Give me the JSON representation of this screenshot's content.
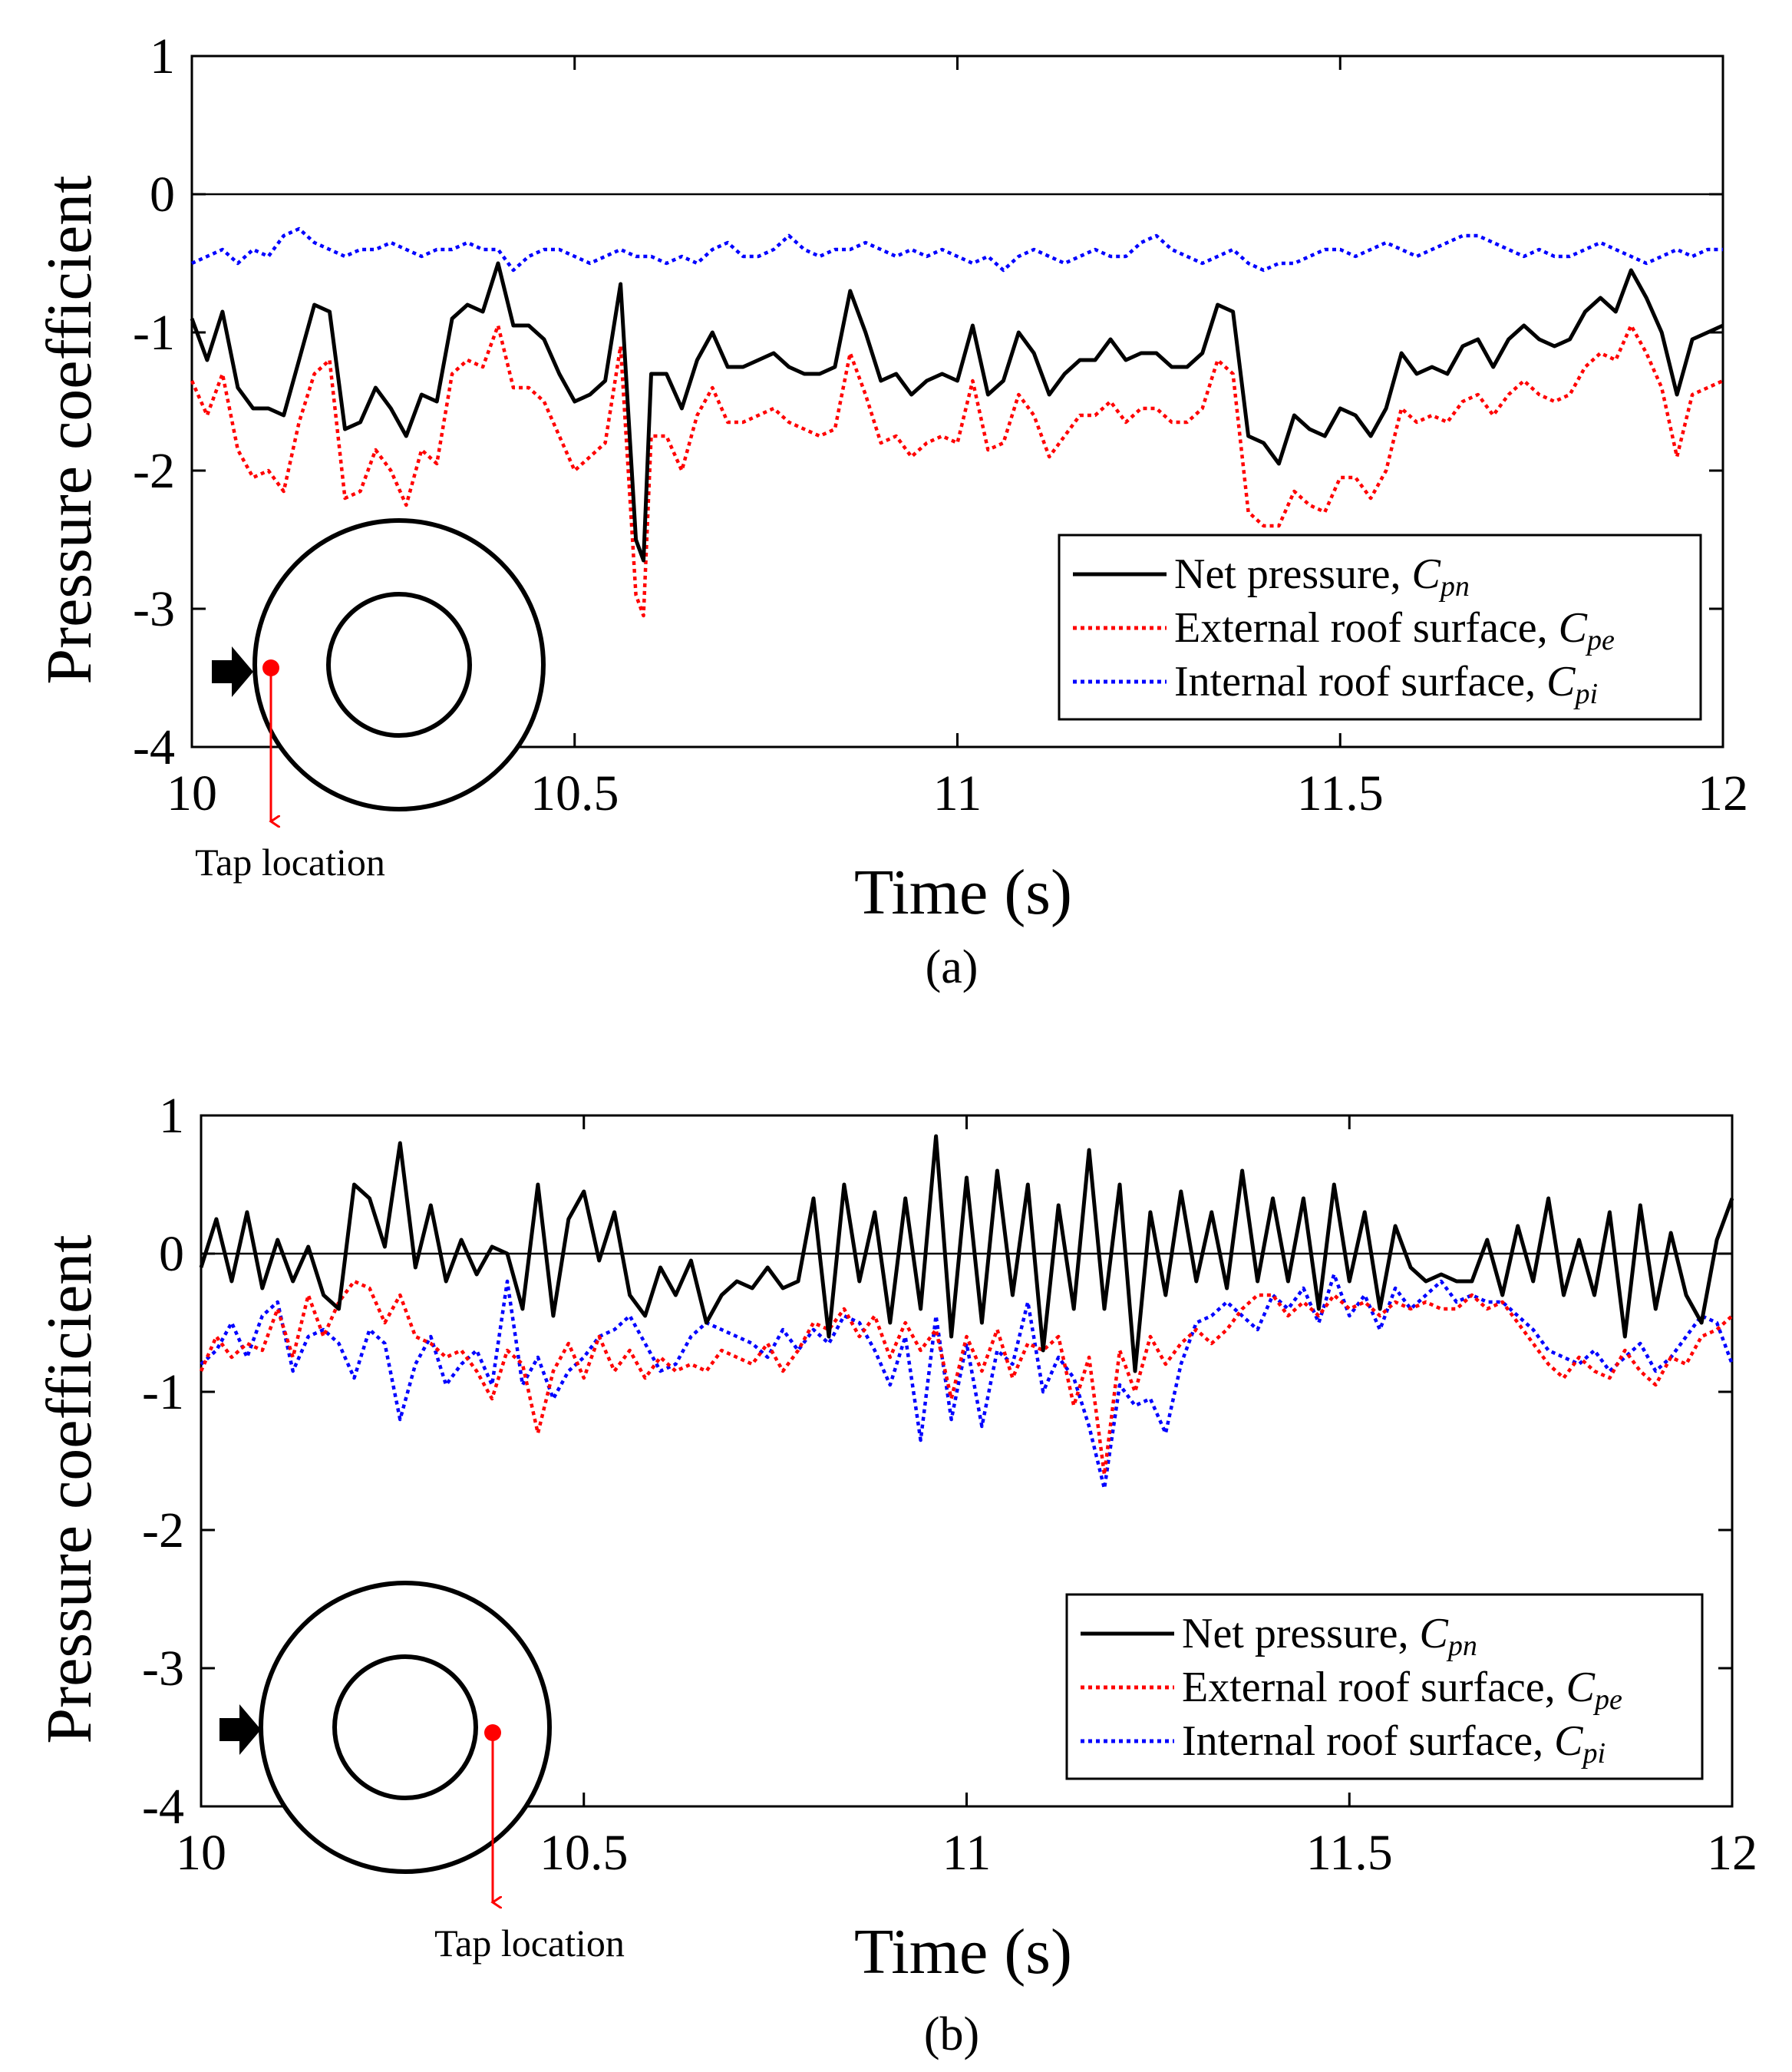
{
  "figure": {
    "panels": [
      {
        "caption": "(a)",
        "tap_label": "Tap location",
        "tap_position": "outer edge (windward)",
        "legend": [
          {
            "prefix": "Net pressure, ",
            "symbol": "C",
            "sub": "pn",
            "color": "#000000",
            "style": "solid"
          },
          {
            "prefix": "External roof surface, ",
            "symbol": "C",
            "sub": "pe",
            "color": "#ff0000",
            "style": "dotted"
          },
          {
            "prefix": "Internal roof surface, ",
            "symbol": "C",
            "sub": "pi",
            "color": "#0000ff",
            "style": "dotted"
          }
        ]
      },
      {
        "caption": "(b)",
        "tap_label": "Tap location",
        "tap_position": "inner ring edge (leeward)",
        "legend": [
          {
            "prefix": "Net pressure, ",
            "symbol": "C",
            "sub": "pn",
            "color": "#000000",
            "style": "solid"
          },
          {
            "prefix": "External roof surface, ",
            "symbol": "C",
            "sub": "pe",
            "color": "#ff0000",
            "style": "dotted"
          },
          {
            "prefix": "Internal roof surface, ",
            "symbol": "C",
            "sub": "pi",
            "color": "#0000ff",
            "style": "dotted"
          }
        ]
      }
    ]
  },
  "chart_data": [
    {
      "type": "line",
      "title": "",
      "xlabel": "Time (s)",
      "ylabel": "Pressure coefficient",
      "xlim": [
        10,
        12
      ],
      "ylim": [
        -4,
        1
      ],
      "xticks": [
        10,
        10.5,
        11,
        11.5,
        12
      ],
      "xtick_labels": [
        "10",
        "10.5",
        "11",
        "11.5",
        "12"
      ],
      "yticks": [
        1,
        0,
        -1,
        -2,
        -3,
        -4
      ],
      "ytick_labels": [
        "1",
        "0",
        "-1",
        "-2",
        "-3",
        "-4"
      ],
      "reference_line": 0,
      "legend_position": "lower-right",
      "x": [
        10.0,
        10.02,
        10.04,
        10.06,
        10.08,
        10.1,
        10.12,
        10.14,
        10.16,
        10.18,
        10.2,
        10.22,
        10.24,
        10.26,
        10.28,
        10.3,
        10.32,
        10.34,
        10.36,
        10.38,
        10.4,
        10.42,
        10.44,
        10.46,
        10.48,
        10.5,
        10.52,
        10.54,
        10.56,
        10.58,
        10.59,
        10.6,
        10.62,
        10.64,
        10.66,
        10.68,
        10.7,
        10.72,
        10.74,
        10.76,
        10.78,
        10.8,
        10.82,
        10.84,
        10.86,
        10.88,
        10.9,
        10.92,
        10.94,
        10.96,
        10.98,
        11.0,
        11.02,
        11.04,
        11.06,
        11.08,
        11.1,
        11.12,
        11.14,
        11.16,
        11.18,
        11.2,
        11.22,
        11.24,
        11.26,
        11.28,
        11.3,
        11.32,
        11.34,
        11.36,
        11.38,
        11.4,
        11.42,
        11.44,
        11.46,
        11.48,
        11.5,
        11.52,
        11.54,
        11.56,
        11.58,
        11.6,
        11.62,
        11.64,
        11.66,
        11.68,
        11.7,
        11.72,
        11.74,
        11.76,
        11.78,
        11.8,
        11.82,
        11.84,
        11.86,
        11.88,
        11.9,
        11.92,
        11.94,
        11.96,
        11.98,
        12.0
      ],
      "series": [
        {
          "name": "Net pressure, Cpn",
          "color": "#000000",
          "style": "solid",
          "values": [
            -0.9,
            -1.2,
            -0.85,
            -1.4,
            -1.55,
            -1.55,
            -1.6,
            -1.2,
            -0.8,
            -0.85,
            -1.7,
            -1.65,
            -1.4,
            -1.55,
            -1.75,
            -1.45,
            -1.5,
            -0.9,
            -0.8,
            -0.85,
            -0.5,
            -0.95,
            -0.95,
            -1.05,
            -1.3,
            -1.5,
            -1.45,
            -1.35,
            -0.65,
            -2.5,
            -2.65,
            -1.3,
            -1.3,
            -1.55,
            -1.2,
            -1.0,
            -1.25,
            -1.25,
            -1.2,
            -1.15,
            -1.25,
            -1.3,
            -1.3,
            -1.25,
            -0.7,
            -1.0,
            -1.35,
            -1.3,
            -1.45,
            -1.35,
            -1.3,
            -1.35,
            -0.95,
            -1.45,
            -1.35,
            -1.0,
            -1.15,
            -1.45,
            -1.3,
            -1.2,
            -1.2,
            -1.05,
            -1.2,
            -1.15,
            -1.15,
            -1.25,
            -1.25,
            -1.15,
            -0.8,
            -0.85,
            -1.75,
            -1.8,
            -1.95,
            -1.6,
            -1.7,
            -1.75,
            -1.55,
            -1.6,
            -1.75,
            -1.55,
            -1.15,
            -1.3,
            -1.25,
            -1.3,
            -1.1,
            -1.05,
            -1.25,
            -1.05,
            -0.95,
            -1.05,
            -1.1,
            -1.05,
            -0.85,
            -0.75,
            -0.85,
            -0.55,
            -0.75,
            -1.0,
            -1.45,
            -1.05,
            -1.0,
            -0.95
          ]
        },
        {
          "name": "External roof surface, Cpe",
          "color": "#ff0000",
          "style": "dotted",
          "values": [
            -1.35,
            -1.6,
            -1.3,
            -1.85,
            -2.05,
            -2.0,
            -2.15,
            -1.65,
            -1.3,
            -1.2,
            -2.2,
            -2.15,
            -1.85,
            -2.0,
            -2.25,
            -1.85,
            -1.95,
            -1.3,
            -1.2,
            -1.25,
            -0.95,
            -1.4,
            -1.4,
            -1.5,
            -1.75,
            -2.0,
            -1.9,
            -1.8,
            -1.1,
            -2.9,
            -3.05,
            -1.75,
            -1.75,
            -2.0,
            -1.6,
            -1.4,
            -1.65,
            -1.65,
            -1.6,
            -1.55,
            -1.65,
            -1.7,
            -1.75,
            -1.7,
            -1.15,
            -1.45,
            -1.8,
            -1.75,
            -1.9,
            -1.8,
            -1.75,
            -1.8,
            -1.35,
            -1.85,
            -1.8,
            -1.45,
            -1.6,
            -1.9,
            -1.75,
            -1.6,
            -1.6,
            -1.5,
            -1.65,
            -1.55,
            -1.55,
            -1.65,
            -1.65,
            -1.55,
            -1.2,
            -1.3,
            -2.3,
            -2.4,
            -2.4,
            -2.15,
            -2.25,
            -2.3,
            -2.05,
            -2.05,
            -2.2,
            -2.0,
            -1.55,
            -1.65,
            -1.6,
            -1.65,
            -1.5,
            -1.45,
            -1.6,
            -1.45,
            -1.35,
            -1.45,
            -1.5,
            -1.45,
            -1.25,
            -1.15,
            -1.2,
            -0.95,
            -1.15,
            -1.4,
            -1.9,
            -1.45,
            -1.4,
            -1.35
          ]
        },
        {
          "name": "Internal roof surface, Cpi",
          "color": "#0000ff",
          "style": "dotted",
          "values": [
            -0.5,
            -0.45,
            -0.4,
            -0.5,
            -0.4,
            -0.45,
            -0.3,
            -0.25,
            -0.35,
            -0.4,
            -0.45,
            -0.4,
            -0.4,
            -0.35,
            -0.4,
            -0.45,
            -0.4,
            -0.4,
            -0.35,
            -0.4,
            -0.4,
            -0.55,
            -0.45,
            -0.4,
            -0.4,
            -0.45,
            -0.5,
            -0.45,
            -0.4,
            -0.45,
            -0.45,
            -0.45,
            -0.5,
            -0.45,
            -0.5,
            -0.4,
            -0.35,
            -0.45,
            -0.45,
            -0.4,
            -0.3,
            -0.4,
            -0.45,
            -0.4,
            -0.4,
            -0.35,
            -0.4,
            -0.45,
            -0.4,
            -0.45,
            -0.4,
            -0.45,
            -0.5,
            -0.45,
            -0.55,
            -0.45,
            -0.4,
            -0.45,
            -0.5,
            -0.45,
            -0.4,
            -0.45,
            -0.45,
            -0.35,
            -0.3,
            -0.4,
            -0.45,
            -0.5,
            -0.45,
            -0.4,
            -0.5,
            -0.55,
            -0.5,
            -0.5,
            -0.45,
            -0.4,
            -0.4,
            -0.45,
            -0.4,
            -0.35,
            -0.4,
            -0.45,
            -0.4,
            -0.35,
            -0.3,
            -0.3,
            -0.35,
            -0.4,
            -0.45,
            -0.4,
            -0.45,
            -0.45,
            -0.4,
            -0.35,
            -0.4,
            -0.45,
            -0.5,
            -0.45,
            -0.4,
            -0.45,
            -0.4,
            -0.4
          ]
        }
      ]
    },
    {
      "type": "line",
      "title": "",
      "xlabel": "Time (s)",
      "ylabel": "Pressure coefficient",
      "xlim": [
        10,
        12
      ],
      "ylim": [
        -4,
        1
      ],
      "xticks": [
        10,
        10.5,
        11,
        11.5,
        12
      ],
      "xtick_labels": [
        "10",
        "10.5",
        "11",
        "11.5",
        "12"
      ],
      "yticks": [
        1,
        0,
        -1,
        -2,
        -3,
        -4
      ],
      "ytick_labels": [
        "1",
        "0",
        "-1",
        "-2",
        "-3",
        "-4"
      ],
      "reference_line": 0,
      "legend_position": "lower-right",
      "x": [
        10.0,
        10.02,
        10.04,
        10.06,
        10.08,
        10.1,
        10.12,
        10.14,
        10.16,
        10.18,
        10.2,
        10.22,
        10.24,
        10.26,
        10.28,
        10.3,
        10.32,
        10.34,
        10.36,
        10.38,
        10.4,
        10.42,
        10.44,
        10.46,
        10.48,
        10.5,
        10.52,
        10.54,
        10.56,
        10.58,
        10.6,
        10.62,
        10.64,
        10.66,
        10.68,
        10.7,
        10.72,
        10.74,
        10.76,
        10.78,
        10.8,
        10.82,
        10.84,
        10.86,
        10.88,
        10.9,
        10.92,
        10.94,
        10.96,
        10.98,
        11.0,
        11.02,
        11.04,
        11.06,
        11.08,
        11.1,
        11.12,
        11.14,
        11.16,
        11.18,
        11.2,
        11.22,
        11.24,
        11.26,
        11.28,
        11.3,
        11.32,
        11.34,
        11.36,
        11.38,
        11.4,
        11.42,
        11.44,
        11.46,
        11.48,
        11.5,
        11.52,
        11.54,
        11.56,
        11.58,
        11.6,
        11.62,
        11.64,
        11.66,
        11.68,
        11.7,
        11.72,
        11.74,
        11.76,
        11.78,
        11.8,
        11.82,
        11.84,
        11.86,
        11.88,
        11.9,
        11.92,
        11.94,
        11.96,
        11.98,
        12.0
      ],
      "series": [
        {
          "name": "Net pressure, Cpn",
          "color": "#000000",
          "style": "solid",
          "values": [
            -0.1,
            0.25,
            -0.2,
            0.3,
            -0.25,
            0.1,
            -0.2,
            0.05,
            -0.3,
            -0.4,
            0.5,
            0.4,
            0.05,
            0.8,
            -0.1,
            0.35,
            -0.2,
            0.1,
            -0.15,
            0.05,
            0.0,
            -0.4,
            0.5,
            -0.45,
            0.25,
            0.45,
            -0.05,
            0.3,
            -0.3,
            -0.45,
            -0.1,
            -0.3,
            -0.05,
            -0.5,
            -0.3,
            -0.2,
            -0.25,
            -0.1,
            -0.25,
            -0.2,
            0.4,
            -0.6,
            0.5,
            -0.2,
            0.3,
            -0.5,
            0.4,
            -0.4,
            0.85,
            -0.6,
            0.55,
            -0.5,
            0.6,
            -0.3,
            0.5,
            -0.7,
            0.35,
            -0.4,
            0.75,
            -0.4,
            0.5,
            -0.85,
            0.3,
            -0.3,
            0.45,
            -0.2,
            0.3,
            -0.25,
            0.6,
            -0.2,
            0.4,
            -0.2,
            0.4,
            -0.4,
            0.5,
            -0.2,
            0.3,
            -0.4,
            0.2,
            -0.1,
            -0.2,
            -0.15,
            -0.2,
            -0.2,
            0.1,
            -0.3,
            0.2,
            -0.2,
            0.4,
            -0.3,
            0.1,
            -0.3,
            0.3,
            -0.6,
            0.35,
            -0.4,
            0.15,
            -0.3,
            -0.5,
            0.1,
            0.4
          ]
        },
        {
          "name": "External roof surface, Cpe",
          "color": "#ff0000",
          "style": "dotted",
          "values": [
            -0.85,
            -0.6,
            -0.75,
            -0.65,
            -0.7,
            -0.4,
            -0.75,
            -0.3,
            -0.6,
            -0.35,
            -0.2,
            -0.25,
            -0.5,
            -0.3,
            -0.6,
            -0.65,
            -0.75,
            -0.7,
            -0.85,
            -1.05,
            -0.7,
            -0.8,
            -1.3,
            -0.85,
            -0.65,
            -0.9,
            -0.6,
            -0.85,
            -0.7,
            -0.9,
            -0.75,
            -0.85,
            -0.8,
            -0.85,
            -0.7,
            -0.75,
            -0.8,
            -0.65,
            -0.85,
            -0.7,
            -0.5,
            -0.55,
            -0.4,
            -0.6,
            -0.45,
            -0.75,
            -0.5,
            -0.7,
            -0.55,
            -1.05,
            -0.6,
            -0.85,
            -0.55,
            -0.9,
            -0.65,
            -0.7,
            -0.6,
            -1.1,
            -0.75,
            -1.6,
            -0.7,
            -1.0,
            -0.6,
            -0.8,
            -0.65,
            -0.55,
            -0.65,
            -0.55,
            -0.4,
            -0.3,
            -0.3,
            -0.45,
            -0.35,
            -0.45,
            -0.3,
            -0.4,
            -0.35,
            -0.45,
            -0.35,
            -0.4,
            -0.35,
            -0.4,
            -0.4,
            -0.3,
            -0.4,
            -0.35,
            -0.5,
            -0.65,
            -0.8,
            -0.9,
            -0.75,
            -0.85,
            -0.9,
            -0.7,
            -0.85,
            -0.95,
            -0.75,
            -0.8,
            -0.6,
            -0.55,
            -0.45
          ]
        },
        {
          "name": "Internal roof surface, Cpi",
          "color": "#0000ff",
          "style": "dotted",
          "values": [
            -0.8,
            -0.7,
            -0.5,
            -0.75,
            -0.45,
            -0.35,
            -0.85,
            -0.6,
            -0.55,
            -0.65,
            -0.9,
            -0.55,
            -0.65,
            -1.2,
            -0.8,
            -0.6,
            -0.95,
            -0.8,
            -0.7,
            -0.95,
            -0.2,
            -0.95,
            -0.75,
            -1.05,
            -0.85,
            -0.75,
            -0.6,
            -0.55,
            -0.45,
            -0.65,
            -0.85,
            -0.8,
            -0.6,
            -0.5,
            -0.55,
            -0.6,
            -0.65,
            -0.75,
            -0.55,
            -0.7,
            -0.55,
            -0.65,
            -0.45,
            -0.5,
            -0.7,
            -0.95,
            -0.6,
            -1.35,
            -0.45,
            -1.2,
            -0.65,
            -1.25,
            -0.7,
            -0.8,
            -0.35,
            -1.0,
            -0.75,
            -0.9,
            -1.25,
            -1.7,
            -0.95,
            -1.1,
            -1.05,
            -1.3,
            -0.8,
            -0.5,
            -0.45,
            -0.35,
            -0.45,
            -0.55,
            -0.3,
            -0.4,
            -0.25,
            -0.5,
            -0.15,
            -0.45,
            -0.3,
            -0.55,
            -0.25,
            -0.4,
            -0.3,
            -0.2,
            -0.35,
            -0.3,
            -0.35,
            -0.35,
            -0.45,
            -0.55,
            -0.7,
            -0.75,
            -0.8,
            -0.7,
            -0.85,
            -0.75,
            -0.65,
            -0.85,
            -0.75,
            -0.6,
            -0.45,
            -0.5,
            -0.8
          ]
        }
      ]
    }
  ]
}
